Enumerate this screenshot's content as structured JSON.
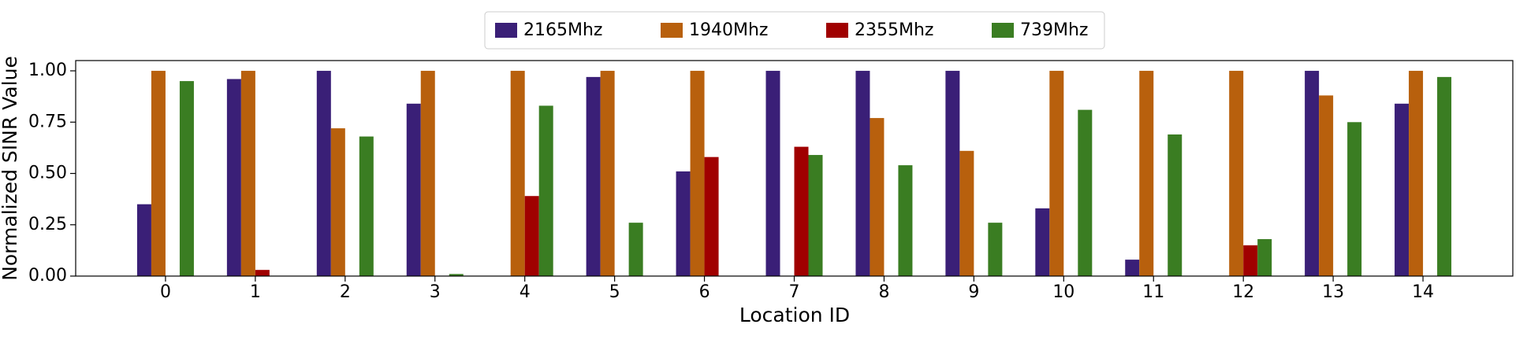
{
  "chart_data": {
    "type": "bar",
    "x_label": "Location ID",
    "y_label": "Normalized SINR Value",
    "categories": [
      "0",
      "1",
      "2",
      "3",
      "4",
      "5",
      "6",
      "7",
      "8",
      "9",
      "10",
      "11",
      "12",
      "13",
      "14"
    ],
    "series": [
      {
        "name": "2165Mhz",
        "color": "#3a1f77",
        "values": [
          0.35,
          0.96,
          1.0,
          0.84,
          0,
          0.97,
          0.51,
          1.0,
          1.0,
          1.0,
          0.33,
          0.08,
          0,
          1.0,
          0.84
        ]
      },
      {
        "name": "1940Mhz",
        "color": "#b8600d",
        "values": [
          1.0,
          1.0,
          0.72,
          1.0,
          1.0,
          1.0,
          1.0,
          0,
          0.77,
          0.61,
          1.0,
          1.0,
          1.0,
          0.88,
          1.0
        ]
      },
      {
        "name": "2355Mhz",
        "color": "#a00000",
        "values": [
          0,
          0.03,
          0,
          0,
          0.39,
          0,
          0.58,
          0.63,
          0,
          0,
          0,
          0,
          0.15,
          0,
          0
        ]
      },
      {
        "name": "739Mhz",
        "color": "#3a7d22",
        "values": [
          0.95,
          0,
          0.68,
          0.01,
          0.83,
          0.26,
          0,
          0.59,
          0.54,
          0.26,
          0.81,
          0.69,
          0.18,
          0.75,
          0.97
        ]
      }
    ],
    "ylim": [
      0,
      1.05
    ],
    "yticks": [
      {
        "value": 0,
        "label": "0.00"
      },
      {
        "value": 0.25,
        "label": "0.25"
      },
      {
        "value": 0.5,
        "label": "0.50"
      },
      {
        "value": 0.75,
        "label": "0.75"
      },
      {
        "value": 1.0,
        "label": "1.00"
      }
    ],
    "grid": false,
    "legend": "top"
  }
}
